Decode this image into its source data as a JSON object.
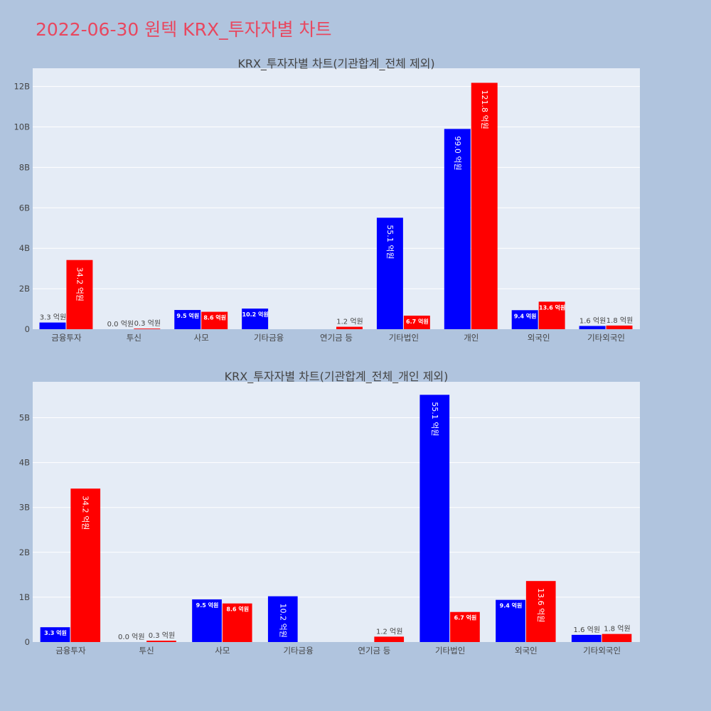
{
  "title": "2022-06-30 원텍 KRX_투자자별 차트",
  "colors": {
    "background": "#b0c4de",
    "plot_bg": "#e5ecf6",
    "buy": "#0000ff",
    "sell": "#ff0000",
    "title": "#e8475f"
  },
  "chart_data": [
    {
      "type": "bar",
      "title": "KRX_투자자별 차트(기관합계_전체 제외)",
      "categories": [
        "금융투자",
        "투신",
        "사모",
        "기타금융",
        "연기금 등",
        "기타법인",
        "개인",
        "외국인",
        "기타외국인"
      ],
      "yticks": [
        "0",
        "2B",
        "4B",
        "6B",
        "8B",
        "10B",
        "12B"
      ],
      "ylim": [
        0,
        12.9
      ],
      "series": [
        {
          "color": "#0000ff",
          "values": [
            0.33,
            0.0,
            0.95,
            1.02,
            0.0,
            5.51,
            9.9,
            0.94,
            0.16
          ],
          "labels": [
            "3.3 억원",
            "0.0 억원",
            "9.5 억원",
            "10.2 억원",
            "",
            "55.1 억원",
            "99.0 억원",
            "9.4 억원",
            "1.6 억원"
          ]
        },
        {
          "color": "#ff0000",
          "values": [
            3.42,
            0.03,
            0.86,
            0.0,
            0.12,
            0.67,
            12.18,
            1.36,
            0.18
          ],
          "labels": [
            "34.2 억원",
            "0.3 억원",
            "8.6 억원",
            "",
            "1.2 억원",
            "6.7 억원",
            "121.8 억원",
            "13.6 억원",
            "1.8 억원"
          ]
        }
      ]
    },
    {
      "type": "bar",
      "title": "KRX_투자자별 차트(기관합계_전체_개인 제외)",
      "categories": [
        "금융투자",
        "투신",
        "사모",
        "기타금융",
        "연기금 등",
        "기타법인",
        "외국인",
        "기타외국인"
      ],
      "yticks": [
        "0",
        "1B",
        "2B",
        "3B",
        "4B",
        "5B"
      ],
      "ylim": [
        0,
        5.8
      ],
      "series": [
        {
          "color": "#0000ff",
          "values": [
            0.33,
            0.0,
            0.95,
            1.02,
            0.0,
            5.51,
            0.94,
            0.16
          ],
          "labels": [
            "3.3 억원",
            "0.0 억원",
            "9.5 억원",
            "10.2 억원",
            "",
            "55.1 억원",
            "9.4 억원",
            "1.6 억원"
          ]
        },
        {
          "color": "#ff0000",
          "values": [
            3.42,
            0.03,
            0.86,
            0.0,
            0.12,
            0.67,
            1.36,
            0.18
          ],
          "labels": [
            "34.2 억원",
            "0.3 억원",
            "8.6 억원",
            "",
            "1.2 억원",
            "6.7 억원",
            "13.6 억원",
            "1.8 억원"
          ]
        }
      ]
    }
  ]
}
